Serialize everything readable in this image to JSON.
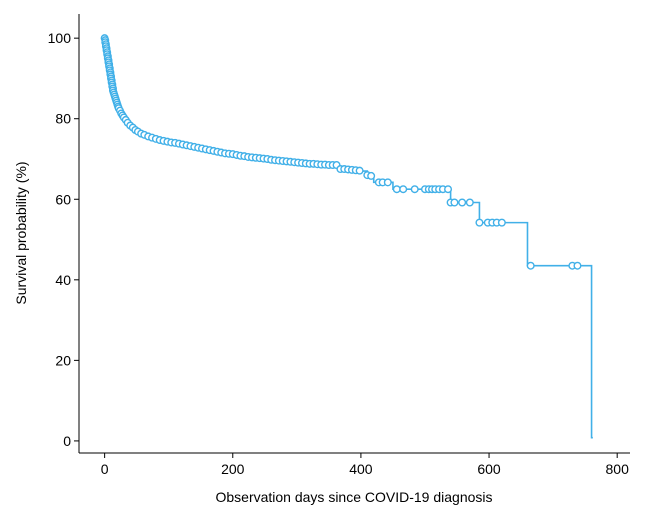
{
  "chart_data": {
    "type": "line",
    "title": "",
    "xlabel": "Observation days since COVID-19 diagnosis",
    "ylabel": "Survival probability (%)",
    "xlim": [
      -40,
      820
    ],
    "ylim": [
      -3,
      106
    ],
    "x_ticks": [
      0,
      200,
      400,
      600,
      800
    ],
    "y_ticks": [
      0,
      20,
      40,
      60,
      80,
      100
    ],
    "grid": false,
    "legend": "none",
    "series_color": "#41b0e8",
    "step_points": [
      [
        0,
        100
      ],
      [
        1,
        99
      ],
      [
        2,
        98
      ],
      [
        3,
        97
      ],
      [
        4,
        96
      ],
      [
        5,
        95
      ],
      [
        6,
        94
      ],
      [
        7,
        93
      ],
      [
        8,
        92
      ],
      [
        9,
        91
      ],
      [
        10,
        90
      ],
      [
        11,
        89
      ],
      [
        12,
        88
      ],
      [
        13,
        87
      ],
      [
        14,
        86.5
      ],
      [
        15,
        85.8
      ],
      [
        17,
        85
      ],
      [
        19,
        84
      ],
      [
        21,
        83
      ],
      [
        23,
        82.2
      ],
      [
        26,
        81.3
      ],
      [
        29,
        80.5
      ],
      [
        32,
        79.8
      ],
      [
        36,
        79
      ],
      [
        40,
        78.3
      ],
      [
        45,
        77.6
      ],
      [
        50,
        77
      ],
      [
        56,
        76.4
      ],
      [
        62,
        76
      ],
      [
        70,
        75.5
      ],
      [
        78,
        75
      ],
      [
        88,
        74.6
      ],
      [
        100,
        74.2
      ],
      [
        115,
        73.8
      ],
      [
        130,
        73.4
      ],
      [
        145,
        72.9
      ],
      [
        160,
        72.4
      ],
      [
        180,
        71.8
      ],
      [
        200,
        71.2
      ],
      [
        220,
        70.7
      ],
      [
        245,
        70.2
      ],
      [
        270,
        69.7
      ],
      [
        300,
        69.2
      ],
      [
        330,
        68.8
      ],
      [
        360,
        68.5
      ],
      [
        365,
        67.5
      ],
      [
        400,
        67
      ],
      [
        410,
        66
      ],
      [
        420,
        64.2
      ],
      [
        440,
        64.2
      ],
      [
        450,
        62.5
      ],
      [
        505,
        62.5
      ],
      [
        540,
        59.2
      ],
      [
        585,
        54.2
      ],
      [
        660,
        43.5
      ],
      [
        760,
        0.8
      ]
    ],
    "end_x": 762,
    "censored": [
      [
        0,
        100
      ],
      [
        1,
        99.5
      ],
      [
        1,
        99
      ],
      [
        2,
        98.5
      ],
      [
        2,
        98
      ],
      [
        3,
        97.5
      ],
      [
        3,
        97
      ],
      [
        4,
        96.5
      ],
      [
        4,
        96
      ],
      [
        5,
        95.5
      ],
      [
        5,
        95
      ],
      [
        6,
        94.5
      ],
      [
        6,
        94
      ],
      [
        7,
        93.5
      ],
      [
        7,
        93
      ],
      [
        8,
        92.5
      ],
      [
        8,
        92
      ],
      [
        9,
        91.5
      ],
      [
        9,
        91
      ],
      [
        10,
        90.5
      ],
      [
        10,
        90
      ],
      [
        11,
        89.5
      ],
      [
        11,
        89
      ],
      [
        12,
        88.5
      ],
      [
        12,
        88
      ],
      [
        13,
        87.5
      ],
      [
        13,
        87
      ],
      [
        14,
        86.5
      ],
      [
        15,
        86
      ],
      [
        16,
        85.5
      ],
      [
        17,
        85
      ],
      [
        18,
        84.5
      ],
      [
        19,
        84
      ],
      [
        20,
        83.5
      ],
      [
        21,
        83
      ],
      [
        22,
        82.6
      ],
      [
        24,
        82
      ],
      [
        26,
        81.3
      ],
      [
        28,
        80.8
      ],
      [
        30,
        80.3
      ],
      [
        33,
        79.7
      ],
      [
        36,
        79
      ],
      [
        40,
        78.3
      ],
      [
        44,
        77.8
      ],
      [
        48,
        77.2
      ],
      [
        52,
        76.8
      ],
      [
        57,
        76.3
      ],
      [
        62,
        76
      ],
      [
        68,
        75.6
      ],
      [
        74,
        75.3
      ],
      [
        80,
        75
      ],
      [
        86,
        74.7
      ],
      [
        92,
        74.5
      ],
      [
        98,
        74.3
      ],
      [
        104,
        74.1
      ],
      [
        110,
        74
      ],
      [
        116,
        73.8
      ],
      [
        122,
        73.6
      ],
      [
        128,
        73.4
      ],
      [
        134,
        73.2
      ],
      [
        140,
        73
      ],
      [
        146,
        72.8
      ],
      [
        152,
        72.6
      ],
      [
        158,
        72.4
      ],
      [
        164,
        72.2
      ],
      [
        170,
        72
      ],
      [
        176,
        71.8
      ],
      [
        182,
        71.6
      ],
      [
        188,
        71.4
      ],
      [
        194,
        71.3
      ],
      [
        200,
        71.2
      ],
      [
        206,
        71
      ],
      [
        212,
        70.8
      ],
      [
        218,
        70.7
      ],
      [
        224,
        70.5
      ],
      [
        230,
        70.4
      ],
      [
        236,
        70.3
      ],
      [
        242,
        70.2
      ],
      [
        248,
        70.1
      ],
      [
        254,
        70
      ],
      [
        260,
        69.8
      ],
      [
        266,
        69.7
      ],
      [
        272,
        69.6
      ],
      [
        278,
        69.5
      ],
      [
        284,
        69.4
      ],
      [
        290,
        69.3
      ],
      [
        296,
        69.2
      ],
      [
        302,
        69.1
      ],
      [
        308,
        69
      ],
      [
        314,
        68.9
      ],
      [
        320,
        68.8
      ],
      [
        326,
        68.8
      ],
      [
        332,
        68.7
      ],
      [
        338,
        68.6
      ],
      [
        344,
        68.6
      ],
      [
        350,
        68.5
      ],
      [
        356,
        68.5
      ],
      [
        362,
        68.5
      ],
      [
        368,
        67.5
      ],
      [
        374,
        67.5
      ],
      [
        380,
        67.4
      ],
      [
        386,
        67.3
      ],
      [
        392,
        67.2
      ],
      [
        398,
        67.1
      ],
      [
        410,
        66
      ],
      [
        416,
        65.8
      ],
      [
        428,
        64.2
      ],
      [
        434,
        64.2
      ],
      [
        442,
        64.2
      ],
      [
        456,
        62.5
      ],
      [
        466,
        62.5
      ],
      [
        484,
        62.5
      ],
      [
        500,
        62.5
      ],
      [
        506,
        62.5
      ],
      [
        511,
        62.5
      ],
      [
        516,
        62.5
      ],
      [
        522,
        62.5
      ],
      [
        528,
        62.5
      ],
      [
        536,
        62.5
      ],
      [
        540,
        59.2
      ],
      [
        546,
        59.2
      ],
      [
        558,
        59.2
      ],
      [
        570,
        59.2
      ],
      [
        585,
        54.2
      ],
      [
        598,
        54.2
      ],
      [
        605,
        54.2
      ],
      [
        612,
        54.2
      ],
      [
        620,
        54.2
      ],
      [
        665,
        43.5
      ],
      [
        730,
        43.5
      ],
      [
        738,
        43.5
      ]
    ]
  }
}
